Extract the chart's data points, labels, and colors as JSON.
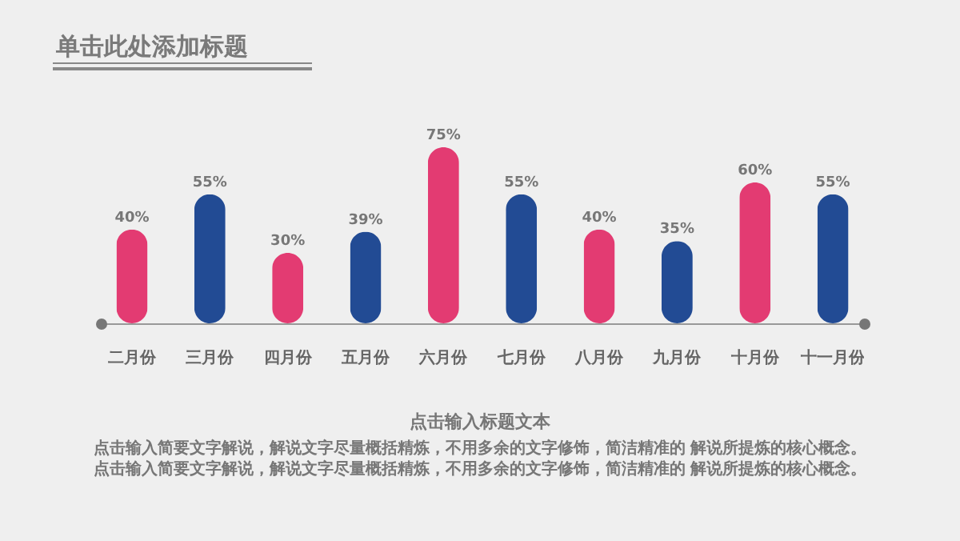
{
  "chart_data": {
    "type": "bar",
    "title": "单击此处添加标题",
    "subtitle": "点击输入标题文本",
    "annotations": [
      "点击输入简要文字解说，解说文字尽量概括精炼，不用多余的文字修饰，简洁精准的 解说所提炼的核心概念。",
      "点击输入简要文字解说，解说文字尽量概括精炼，不用多余的文字修饰，简洁精准的 解说所提炼的核心概念。"
    ],
    "categories": [
      "二月份",
      "三月份",
      "四月份",
      "五月份",
      "六月份",
      "七月份",
      "八月份",
      "九月份",
      "十月份",
      "十一月份"
    ],
    "values": [
      40,
      55,
      30,
      39,
      75,
      55,
      40,
      35,
      60,
      55
    ],
    "colors": [
      "#e33b72",
      "#224b94",
      "#e33b72",
      "#224b94",
      "#e33b72",
      "#224b94",
      "#e33b72",
      "#224b94",
      "#e33b72",
      "#224b94"
    ],
    "value_labels": [
      "40%",
      "55%",
      "30%",
      "39%",
      "75%",
      "55%",
      "40%",
      "35%",
      "60%",
      "55%"
    ]
  }
}
